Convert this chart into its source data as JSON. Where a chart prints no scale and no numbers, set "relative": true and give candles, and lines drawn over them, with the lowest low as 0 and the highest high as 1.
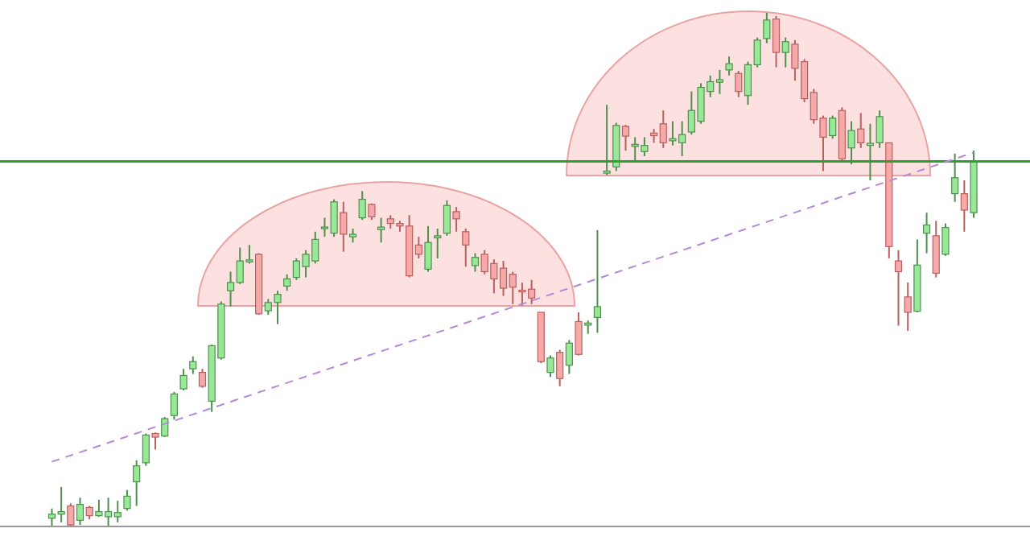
{
  "chart_data": {
    "type": "candlestick",
    "relative": true,
    "categories": [
      null,
      null,
      null,
      null,
      null,
      null,
      null,
      null,
      null,
      null,
      null,
      null,
      null,
      null,
      null,
      null,
      null,
      null,
      null,
      null,
      null,
      null,
      null,
      null,
      null,
      null,
      null,
      null,
      null,
      null,
      null,
      null,
      null,
      null,
      null,
      null,
      null,
      null,
      null,
      null,
      null,
      null,
      null,
      null,
      null,
      null,
      null,
      null,
      null,
      null,
      null,
      null,
      null,
      null,
      null,
      null,
      null,
      null,
      null,
      null,
      null,
      null,
      null,
      null,
      null,
      null,
      null,
      null,
      null,
      null,
      null,
      null,
      null,
      null,
      null,
      null,
      null,
      null,
      null,
      null,
      null,
      null,
      null,
      null,
      null,
      null,
      null,
      null,
      null,
      null,
      null,
      null,
      null,
      null,
      null,
      null,
      null,
      null,
      null
    ],
    "ohlc": [
      [
        0.016,
        0.035,
        0,
        0.024
      ],
      [
        0.024,
        0.077,
        0.008,
        0.029
      ],
      [
        0.04,
        0.045,
        0,
        0.003
      ],
      [
        0.012,
        0.056,
        0.003,
        0.043
      ],
      [
        0.037,
        0.04,
        0.014,
        0.021
      ],
      [
        0.021,
        0.052,
        0.019,
        0.029
      ],
      [
        0.019,
        0.056,
        0,
        0.029
      ],
      [
        0.019,
        0.05,
        0.008,
        0.027
      ],
      [
        0.035,
        0.071,
        0.031,
        0.059
      ],
      [
        0.087,
        0.129,
        0.04,
        0.118
      ],
      [
        0.124,
        0.181,
        0.118,
        0.178
      ],
      [
        0.181,
        0.183,
        0.15,
        0.174
      ],
      [
        0.176,
        0.213,
        0.174,
        0.21
      ],
      [
        0.216,
        0.262,
        0.208,
        0.258
      ],
      [
        0.268,
        0.307,
        0.265,
        0.294
      ],
      [
        0.307,
        0.331,
        0.297,
        0.321
      ],
      [
        0.3,
        0.307,
        0.27,
        0.273
      ],
      [
        0.244,
        0.354,
        0.223,
        0.352
      ],
      [
        0.328,
        0.438,
        0.325,
        0.433
      ],
      [
        0.459,
        0.496,
        0.428,
        0.475
      ],
      [
        0.475,
        0.543,
        0.472,
        0.517
      ],
      [
        0.515,
        0.548,
        0.512,
        0.519
      ],
      [
        0.53,
        0.532,
        0.412,
        0.414
      ],
      [
        0.42,
        0.443,
        0.412,
        0.436
      ],
      [
        0.436,
        0.459,
        0.394,
        0.452
      ],
      [
        0.468,
        0.491,
        0.459,
        0.482
      ],
      [
        0.485,
        0.522,
        0.48,
        0.517
      ],
      [
        0.506,
        0.538,
        0.485,
        0.53
      ],
      [
        0.517,
        0.574,
        0.512,
        0.559
      ],
      [
        0.58,
        0.601,
        0.564,
        0.583
      ],
      [
        0.571,
        0.637,
        0.564,
        0.632
      ],
      [
        0.611,
        0.632,
        0.535,
        0.569
      ],
      [
        0.564,
        0.58,
        0.553,
        0.569
      ],
      [
        0.601,
        0.653,
        0.597,
        0.637
      ],
      [
        0.627,
        0.629,
        0.597,
        0.603
      ],
      [
        0.578,
        0.601,
        0.553,
        0.583
      ],
      [
        0.599,
        0.606,
        0.58,
        0.59
      ],
      [
        0.59,
        0.595,
        0.574,
        0.585
      ],
      [
        0.585,
        0.606,
        0.485,
        0.488
      ],
      [
        0.548,
        0.564,
        0.522,
        0.53
      ],
      [
        0.501,
        0.585,
        0.496,
        0.553
      ],
      [
        0.562,
        0.58,
        0.522,
        0.566
      ],
      [
        0.571,
        0.635,
        0.566,
        0.625
      ],
      [
        0.613,
        0.622,
        0.574,
        0.599
      ],
      [
        0.574,
        0.58,
        0.506,
        0.548
      ],
      [
        0.508,
        0.532,
        0.496,
        0.524
      ],
      [
        0.53,
        0.538,
        0.491,
        0.496
      ],
      [
        0.512,
        0.52,
        0.454,
        0.482
      ],
      [
        0.503,
        0.517,
        0.449,
        0.464
      ],
      [
        0.491,
        0.496,
        0.433,
        0.466
      ],
      [
        0.46,
        0.475,
        0.43,
        0.458
      ],
      [
        0.462,
        0.48,
        0.433,
        0.445
      ],
      [
        0.417,
        0.417,
        0.318,
        0.321
      ],
      [
        0.3,
        0.333,
        0.291,
        0.328
      ],
      [
        0.339,
        0.344,
        0.273,
        0.288
      ],
      [
        0.314,
        0.363,
        0.297,
        0.357
      ],
      [
        0.399,
        0.417,
        0.333,
        0.335
      ],
      [
        0.392,
        0.401,
        0.375,
        0.396
      ],
      [
        0.407,
        0.577,
        0.377,
        0.428
      ],
      [
        0.688,
        0.821,
        0.684,
        0.692
      ],
      [
        0.7,
        0.786,
        0.692,
        0.781
      ],
      [
        0.779,
        0.782,
        0.732,
        0.76
      ],
      [
        0.74,
        0.758,
        0.711,
        0.744
      ],
      [
        0.73,
        0.758,
        0.721,
        0.742
      ],
      [
        0.766,
        0.774,
        0.747,
        0.761
      ],
      [
        0.784,
        0.81,
        0.737,
        0.747
      ],
      [
        0.751,
        0.789,
        0.742,
        0.755
      ],
      [
        0.747,
        0.789,
        0.721,
        0.763
      ],
      [
        0.768,
        0.847,
        0.763,
        0.81
      ],
      [
        0.789,
        0.863,
        0.784,
        0.855
      ],
      [
        0.847,
        0.878,
        0.836,
        0.866
      ],
      [
        0.865,
        0.889,
        0.842,
        0.87
      ],
      [
        0.889,
        0.915,
        0.878,
        0.901
      ],
      [
        0.882,
        0.887,
        0.836,
        0.847
      ],
      [
        0.839,
        0.905,
        0.821,
        0.899
      ],
      [
        0.899,
        0.952,
        0.894,
        0.947
      ],
      [
        0.95,
        1,
        0.941,
        0.986
      ],
      [
        0.988,
        0.994,
        0.894,
        0.923
      ],
      [
        0.923,
        0.952,
        0.894,
        0.944
      ],
      [
        0.939,
        0.947,
        0.868,
        0.892
      ],
      [
        0.905,
        0.91,
        0.826,
        0.833
      ],
      [
        0.845,
        0.852,
        0.784,
        0.792
      ],
      [
        0.795,
        0.8,
        0.692,
        0.758
      ],
      [
        0.761,
        0.8,
        0.755,
        0.795
      ],
      [
        0.81,
        0.816,
        0.711,
        0.716
      ],
      [
        0.737,
        0.789,
        0.705,
        0.771
      ],
      [
        0.774,
        0.805,
        0.737,
        0.747
      ],
      [
        0.742,
        0.784,
        0.674,
        0.746
      ],
      [
        0.747,
        0.81,
        0.737,
        0.798
      ],
      [
        0.747,
        0.747,
        0.522,
        0.545
      ],
      [
        0.517,
        0.538,
        0.391,
        0.496
      ],
      [
        0.447,
        0.475,
        0.381,
        0.417
      ],
      [
        0.419,
        0.559,
        0.417,
        0.509
      ],
      [
        0.571,
        0.611,
        0.532,
        0.587
      ],
      [
        0.566,
        0.595,
        0.485,
        0.493
      ],
      [
        0.53,
        0.59,
        0.527,
        0.582
      ],
      [
        0.648,
        0.726,
        0.632,
        0.679
      ],
      [
        0.648,
        0.674,
        0.574,
        0.616
      ],
      [
        0.611,
        0.732,
        0.601,
        0.711
      ]
    ],
    "series": [
      {
        "type": "line",
        "color": "#b48ad8",
        "line_style": "dashed",
        "values": [
          0.126,
          null,
          null,
          null,
          null,
          null,
          null,
          null,
          null,
          null,
          null,
          null,
          null,
          null,
          null,
          null,
          null,
          null,
          null,
          null,
          null,
          null,
          null,
          null,
          null,
          null,
          null,
          null,
          null,
          null,
          null,
          null,
          null,
          null,
          null,
          null,
          null,
          null,
          null,
          null,
          null,
          null,
          null,
          null,
          null,
          null,
          null,
          null,
          null,
          null,
          null,
          null,
          null,
          null,
          null,
          null,
          null,
          null,
          null,
          null,
          null,
          null,
          null,
          null,
          null,
          null,
          null,
          null,
          null,
          null,
          null,
          null,
          null,
          null,
          null,
          null,
          null,
          null,
          null,
          null,
          null,
          null,
          null,
          null,
          null,
          null,
          null,
          null,
          null,
          null,
          null,
          null,
          null,
          null,
          null,
          null,
          null,
          null,
          0.728
        ]
      }
    ],
    "ref_lines": [
      {
        "axis": "y",
        "value": 0.711,
        "color": "#2e9e2e"
      }
    ]
  }
}
